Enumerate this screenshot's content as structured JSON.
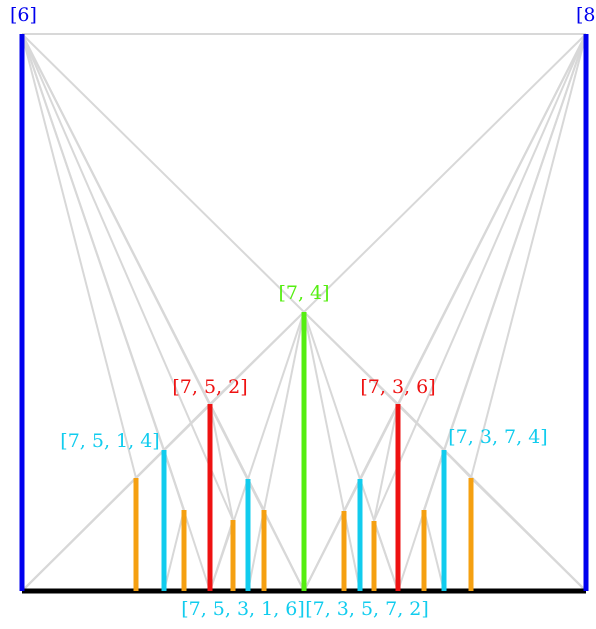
{
  "colors": {
    "blue": "#0000ee",
    "green": "#55ee11",
    "red": "#ee1111",
    "cyan": "#11ccee",
    "orange": "#f5a011",
    "black": "#000000",
    "edge": "#d8d8d8"
  },
  "labels": {
    "top_left": "[6]",
    "top_right": "[8",
    "center": "[7, 4]",
    "red_left": "[7, 5, 2]",
    "red_right": "[7, 3, 6]",
    "cyan_left": "[7, 5, 1, 4]",
    "cyan_right": "[7, 3, 7, 4]",
    "bottom_left": "[7, 5, 3, 1, 6]",
    "bottom_right": "[7, 3, 5, 7, 2]"
  }
}
